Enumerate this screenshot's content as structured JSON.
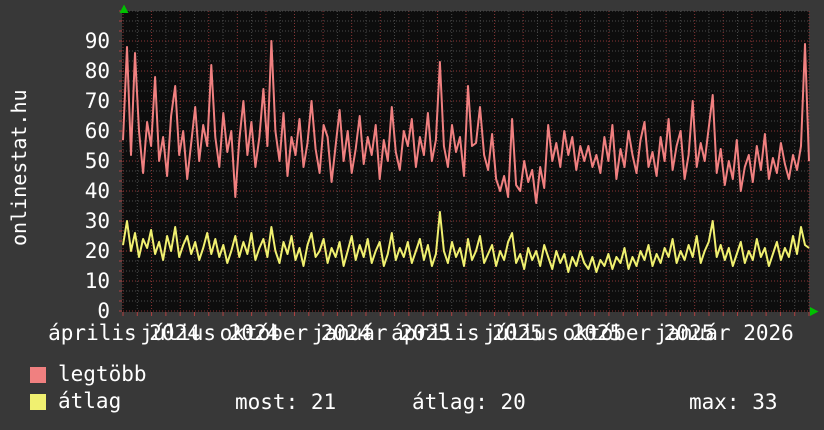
{
  "branding": {
    "site": "onlinestat.hu"
  },
  "legend": [
    {
      "label": "legtöbb",
      "color": "#f08080"
    },
    {
      "label": "átlag",
      "color": "#f0f070"
    }
  ],
  "stats": [
    {
      "label": "most",
      "value": "21",
      "text": "most: 21"
    },
    {
      "label": "átlag",
      "value": "20",
      "text": "átlag: 20"
    },
    {
      "label": "max",
      "value": "33",
      "text": "max: 33"
    }
  ],
  "chart_data": {
    "type": "line",
    "title": "",
    "xlabel": "",
    "ylabel": "",
    "ylim": [
      0,
      100
    ],
    "y_ticks": [
      0,
      10,
      20,
      30,
      40,
      50,
      60,
      70,
      80,
      90
    ],
    "x_tick_labels": [
      "április 2024",
      "július 2024",
      "október 2024",
      "január 2025",
      "április 2025",
      "július 2025",
      "október 2025",
      "január 2026"
    ],
    "legend_position": "bottom-left",
    "grid": {
      "on": true,
      "minor_color": "#4a4a4a",
      "major_color": "#8a3535",
      "tick_color": "#b04040"
    },
    "colors": {
      "background": "#383838",
      "plot_background": "#0d0d0d",
      "text": "#ffffff",
      "axis_arrow": "#00c000"
    },
    "series": [
      {
        "name": "legtöbb",
        "color": "#f08080",
        "values": [
          57,
          88,
          52,
          86,
          60,
          46,
          63,
          55,
          78,
          50,
          58,
          45,
          65,
          75,
          52,
          60,
          44,
          56,
          68,
          50,
          62,
          55,
          82,
          58,
          48,
          66,
          53,
          60,
          38,
          57,
          70,
          52,
          63,
          48,
          58,
          74,
          55,
          90,
          60,
          50,
          66,
          45,
          58,
          52,
          64,
          48,
          56,
          70,
          54,
          46,
          62,
          58,
          43,
          55,
          67,
          50,
          60,
          46,
          54,
          65,
          49,
          58,
          52,
          62,
          44,
          57,
          50,
          68,
          53,
          47,
          60,
          55,
          64,
          48,
          58,
          52,
          66,
          50,
          57,
          83,
          55,
          48,
          62,
          53,
          58,
          45,
          75,
          55,
          56,
          68,
          52,
          47,
          59,
          44,
          40,
          45,
          38,
          64,
          42,
          40,
          50,
          43,
          47,
          36,
          48,
          41,
          62,
          50,
          56,
          48,
          60,
          52,
          58,
          47,
          55,
          50,
          55,
          48,
          52,
          46,
          58,
          50,
          62,
          44,
          54,
          48,
          60,
          52,
          46,
          57,
          63,
          48,
          53,
          45,
          58,
          50,
          64,
          47,
          55,
          60,
          44,
          52,
          70,
          48,
          56,
          50,
          61,
          72,
          46,
          54,
          42,
          50,
          44,
          57,
          40,
          48,
          52,
          43,
          55,
          47,
          59,
          44,
          51,
          46,
          56,
          49,
          44,
          52,
          47,
          55,
          89,
          50
        ]
      },
      {
        "name": "átlag",
        "color": "#f0f070",
        "values": [
          22,
          30,
          20,
          26,
          18,
          24,
          21,
          27,
          19,
          23,
          17,
          25,
          20,
          28,
          18,
          22,
          25,
          19,
          23,
          17,
          21,
          26,
          19,
          24,
          18,
          22,
          16,
          20,
          25,
          18,
          23,
          19,
          26,
          17,
          21,
          24,
          18,
          28,
          20,
          16,
          23,
          19,
          25,
          17,
          21,
          15,
          22,
          26,
          18,
          20,
          24,
          16,
          21,
          18,
          23,
          15,
          20,
          25,
          17,
          22,
          18,
          24,
          16,
          20,
          23,
          15,
          19,
          26,
          17,
          21,
          18,
          23,
          16,
          20,
          24,
          17,
          22,
          15,
          19,
          33,
          20,
          16,
          23,
          18,
          21,
          15,
          24,
          17,
          20,
          25,
          16,
          19,
          22,
          15,
          20,
          17,
          23,
          26,
          16,
          19,
          14,
          21,
          17,
          20,
          15,
          22,
          18,
          14,
          20,
          16,
          19,
          13,
          18,
          15,
          20,
          16,
          14,
          18,
          13,
          17,
          15,
          19,
          14,
          18,
          16,
          21,
          14,
          18,
          15,
          20,
          17,
          22,
          15,
          19,
          16,
          21,
          18,
          24,
          16,
          20,
          17,
          22,
          18,
          25,
          16,
          20,
          23,
          30,
          18,
          22,
          17,
          21,
          15,
          19,
          23,
          16,
          20,
          17,
          24,
          18,
          21,
          15,
          19,
          23,
          17,
          21,
          18,
          25,
          19,
          28,
          22,
          21
        ]
      }
    ]
  }
}
